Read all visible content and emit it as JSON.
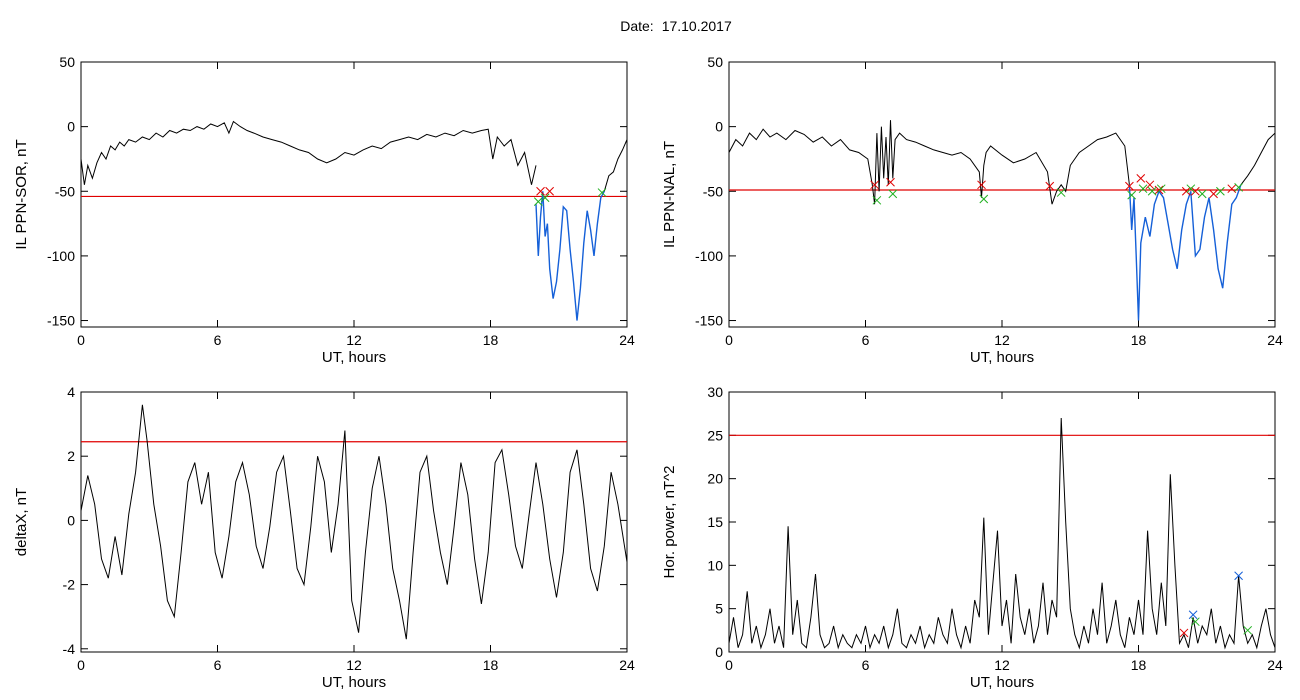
{
  "header": {
    "date_label": "Date:",
    "date_value": "17.10.2017"
  },
  "chart_data": [
    {
      "type": "line",
      "title": "",
      "xlabel": "UT, hours",
      "ylabel": "IL PPN-SOR, nT",
      "xlim": [
        0,
        24
      ],
      "ylim": [
        -155,
        50
      ],
      "xticks": [
        0,
        6,
        12,
        18,
        24
      ],
      "yticks": [
        -150,
        -100,
        -50,
        0,
        50
      ],
      "threshold": {
        "value": -54,
        "color": "#e00000"
      },
      "series": [
        {
          "color": "#000000",
          "x": [
            0,
            0.15,
            0.3,
            0.5,
            0.7,
            0.9,
            1.1,
            1.3,
            1.5,
            1.7,
            1.9,
            2.1,
            2.4,
            2.7,
            3.0,
            3.3,
            3.6,
            3.9,
            4.2,
            4.5,
            4.8,
            5.1,
            5.4,
            5.7,
            6.0,
            6.3,
            6.5,
            6.7,
            7.0,
            7.3,
            7.6,
            8.0,
            8.4,
            8.8,
            9.2,
            9.6,
            10.0,
            10.4,
            10.8,
            11.2,
            11.6,
            12.0,
            12.4,
            12.8,
            13.2,
            13.6,
            14.0,
            14.4,
            14.8,
            15.2,
            15.6,
            16.0,
            16.4,
            16.8,
            17.2,
            17.6,
            17.9,
            18.1,
            18.3,
            18.6,
            18.9,
            19.2,
            19.5,
            19.8,
            20.0
          ],
          "y": [
            -25,
            -45,
            -30,
            -40,
            -28,
            -20,
            -25,
            -15,
            -18,
            -12,
            -15,
            -10,
            -12,
            -8,
            -10,
            -5,
            -8,
            -3,
            -5,
            -2,
            -3,
            0,
            -2,
            2,
            0,
            3,
            -5,
            4,
            0,
            -3,
            -5,
            -8,
            -10,
            -12,
            -15,
            -18,
            -20,
            -25,
            -28,
            -25,
            -20,
            -22,
            -18,
            -15,
            -17,
            -12,
            -10,
            -8,
            -10,
            -6,
            -8,
            -5,
            -7,
            -3,
            -5,
            -3,
            -2,
            -25,
            -8,
            -15,
            -10,
            -30,
            -20,
            -45,
            -30
          ]
        },
        {
          "color": "#1560d8",
          "x": [
            20.0,
            20.1,
            20.2,
            20.3,
            20.4,
            20.5,
            20.6,
            20.75,
            20.9,
            21.05,
            21.2,
            21.35,
            21.5,
            21.65,
            21.8,
            21.95,
            22.1,
            22.25,
            22.4,
            22.55,
            22.7,
            22.85,
            23.0
          ],
          "y": [
            -60,
            -100,
            -70,
            -50,
            -85,
            -75,
            -110,
            -133,
            -120,
            -95,
            -62,
            -65,
            -95,
            -120,
            -150,
            -125,
            -90,
            -65,
            -80,
            -100,
            -75,
            -55,
            -50
          ]
        },
        {
          "color": "#000000",
          "x": [
            23.0,
            23.2,
            23.4,
            23.6,
            23.8,
            24.0
          ],
          "y": [
            -50,
            -38,
            -35,
            -25,
            -18,
            -10
          ]
        }
      ],
      "markers": [
        {
          "color": "#e00000",
          "x": [
            20.2,
            20.6
          ],
          "y": [
            -50,
            -50
          ]
        },
        {
          "color": "#20b020",
          "x": [
            20.1,
            20.4,
            22.9
          ],
          "y": [
            -58,
            -55,
            -51
          ]
        }
      ]
    },
    {
      "type": "line",
      "title": "",
      "xlabel": "UT, hours",
      "ylabel": "IL PPN-NAL, nT",
      "xlim": [
        0,
        24
      ],
      "ylim": [
        -155,
        50
      ],
      "xticks": [
        0,
        6,
        12,
        18,
        24
      ],
      "yticks": [
        -150,
        -100,
        -50,
        0,
        50
      ],
      "threshold": {
        "value": -49,
        "color": "#e00000"
      },
      "series": [
        {
          "color": "#000000",
          "x": [
            0,
            0.3,
            0.6,
            0.9,
            1.2,
            1.5,
            1.8,
            2.1,
            2.5,
            2.9,
            3.3,
            3.7,
            4.1,
            4.5,
            4.9,
            5.3,
            5.7,
            6.1,
            6.3,
            6.4,
            6.5,
            6.6,
            6.7,
            6.8,
            6.9,
            7.0,
            7.1,
            7.2,
            7.3,
            7.5,
            7.8,
            8.2,
            8.6,
            9.0,
            9.4,
            9.8,
            10.2,
            10.6,
            11.0,
            11.1,
            11.2,
            11.3,
            11.5,
            12.0,
            12.5,
            13.0,
            13.5,
            14.0,
            14.2,
            14.4,
            14.6,
            14.8,
            15.0,
            15.4,
            15.8,
            16.2,
            16.6,
            17.0,
            17.4,
            17.6
          ],
          "y": [
            -20,
            -10,
            -15,
            -5,
            -10,
            -2,
            -8,
            -5,
            -10,
            -3,
            -6,
            -12,
            -8,
            -15,
            -10,
            -18,
            -20,
            -25,
            -45,
            -60,
            -5,
            -50,
            0,
            -40,
            -8,
            -45,
            5,
            -40,
            -10,
            -5,
            -10,
            -12,
            -15,
            -18,
            -20,
            -22,
            -20,
            -25,
            -35,
            -55,
            -30,
            -20,
            -15,
            -22,
            -28,
            -25,
            -20,
            -35,
            -60,
            -50,
            -45,
            -50,
            -30,
            -20,
            -15,
            -10,
            -8,
            -5,
            -15,
            -45
          ]
        },
        {
          "color": "#1560d8",
          "x": [
            17.6,
            17.7,
            17.8,
            17.9,
            18.0,
            18.1,
            18.3,
            18.5,
            18.7,
            18.9,
            19.1,
            19.3,
            19.5,
            19.7,
            19.9,
            20.1,
            20.3,
            20.5,
            20.7,
            20.9,
            21.1,
            21.3,
            21.5,
            21.7,
            21.9,
            22.1,
            22.3,
            22.5
          ],
          "y": [
            -45,
            -80,
            -55,
            -100,
            -150,
            -90,
            -70,
            -85,
            -60,
            -50,
            -55,
            -75,
            -95,
            -110,
            -80,
            -60,
            -50,
            -100,
            -95,
            -70,
            -55,
            -80,
            -110,
            -125,
            -90,
            -60,
            -55,
            -45
          ]
        },
        {
          "color": "#000000",
          "x": [
            22.5,
            22.8,
            23.1,
            23.4,
            23.7,
            24.0
          ],
          "y": [
            -45,
            -38,
            -30,
            -20,
            -10,
            -5
          ]
        }
      ],
      "markers": [
        {
          "color": "#e00000",
          "x": [
            6.4,
            7.1,
            11.1,
            14.1,
            17.6,
            18.1,
            18.5,
            18.9,
            20.1,
            20.5,
            21.3,
            22.1
          ],
          "y": [
            -45,
            -43,
            -45,
            -46,
            -46,
            -40,
            -45,
            -49,
            -50,
            -50,
            -52,
            -48
          ]
        },
        {
          "color": "#20b020",
          "x": [
            6.5,
            7.2,
            11.2,
            14.6,
            17.7,
            18.2,
            18.6,
            19.0,
            20.3,
            20.8,
            21.6,
            22.4
          ],
          "y": [
            -57,
            -52,
            -56,
            -51,
            -53,
            -48,
            -50,
            -48,
            -48,
            -52,
            -50,
            -47
          ]
        }
      ]
    },
    {
      "type": "line",
      "title": "",
      "xlabel": "UT, hours",
      "ylabel": "deltaX, nT",
      "xlim": [
        0,
        24
      ],
      "ylim": [
        -4.1,
        4
      ],
      "xticks": [
        0,
        6,
        12,
        18,
        24
      ],
      "yticks": [
        -4,
        -2,
        0,
        2,
        4
      ],
      "threshold": {
        "value": 2.45,
        "color": "#e00000"
      },
      "series": [
        {
          "color": "#000000",
          "x": [
            0,
            0.3,
            0.6,
            0.9,
            1.2,
            1.5,
            1.8,
            2.1,
            2.4,
            2.7,
            2.9,
            3.2,
            3.5,
            3.8,
            4.1,
            4.4,
            4.7,
            5.0,
            5.3,
            5.6,
            5.9,
            6.2,
            6.5,
            6.8,
            7.1,
            7.4,
            7.7,
            8.0,
            8.3,
            8.6,
            8.9,
            9.2,
            9.5,
            9.8,
            10.1,
            10.4,
            10.7,
            11.0,
            11.3,
            11.6,
            11.9,
            12.2,
            12.5,
            12.8,
            13.1,
            13.4,
            13.7,
            14.0,
            14.3,
            14.6,
            14.9,
            15.2,
            15.5,
            15.8,
            16.1,
            16.4,
            16.7,
            17.0,
            17.3,
            17.6,
            17.9,
            18.2,
            18.5,
            18.8,
            19.1,
            19.4,
            19.7,
            20.0,
            20.3,
            20.6,
            20.9,
            21.2,
            21.5,
            21.8,
            22.1,
            22.4,
            22.7,
            23.0,
            23.3,
            23.6,
            24.0
          ],
          "y": [
            0.3,
            1.4,
            0.5,
            -1.2,
            -1.8,
            -0.5,
            -1.7,
            0.2,
            1.5,
            3.6,
            2.5,
            0.5,
            -0.8,
            -2.5,
            -3.0,
            -1.0,
            1.2,
            1.8,
            0.5,
            1.5,
            -1.0,
            -1.8,
            -0.5,
            1.2,
            1.8,
            0.8,
            -0.8,
            -1.5,
            -0.2,
            1.5,
            2.0,
            0.3,
            -1.5,
            -2.0,
            -0.2,
            2.0,
            1.2,
            -1.0,
            0.5,
            2.8,
            -2.5,
            -3.5,
            -1.0,
            1.0,
            2.0,
            0.5,
            -1.5,
            -2.5,
            -3.7,
            -1.0,
            1.5,
            2.0,
            0.3,
            -1.0,
            -2.0,
            -0.2,
            1.8,
            0.8,
            -1.2,
            -2.6,
            -1.0,
            1.8,
            2.2,
            0.8,
            -0.8,
            -1.5,
            0.2,
            1.8,
            0.5,
            -1.2,
            -2.4,
            -1.0,
            1.5,
            2.2,
            0.5,
            -1.5,
            -2.2,
            -0.8,
            1.5,
            0.5,
            -1.3
          ]
        }
      ],
      "markers": []
    },
    {
      "type": "line",
      "title": "",
      "xlabel": "UT, hours",
      "ylabel": "Hor. power, nT^2",
      "xlim": [
        0,
        24
      ],
      "ylim": [
        0,
        30
      ],
      "xticks": [
        0,
        6,
        12,
        18,
        24
      ],
      "yticks": [
        0,
        5,
        10,
        15,
        20,
        25,
        30
      ],
      "threshold": {
        "value": 25,
        "color": "#e00000"
      },
      "series": [
        {
          "color": "#000000",
          "x": [
            0,
            0.2,
            0.4,
            0.6,
            0.8,
            1.0,
            1.2,
            1.4,
            1.6,
            1.8,
            2.0,
            2.2,
            2.4,
            2.6,
            2.8,
            3.0,
            3.2,
            3.4,
            3.6,
            3.8,
            4.0,
            4.2,
            4.4,
            4.6,
            4.8,
            5.0,
            5.2,
            5.4,
            5.6,
            5.8,
            6.0,
            6.2,
            6.4,
            6.6,
            6.8,
            7.0,
            7.2,
            7.4,
            7.6,
            7.8,
            8.0,
            8.2,
            8.4,
            8.6,
            8.8,
            9.0,
            9.2,
            9.4,
            9.6,
            9.8,
            10.0,
            10.2,
            10.4,
            10.6,
            10.8,
            11.0,
            11.2,
            11.4,
            11.6,
            11.8,
            12.0,
            12.2,
            12.4,
            12.6,
            12.8,
            13.0,
            13.2,
            13.4,
            13.6,
            13.8,
            14.0,
            14.2,
            14.4,
            14.6,
            14.8,
            15.0,
            15.2,
            15.4,
            15.6,
            15.8,
            16.0,
            16.2,
            16.4,
            16.6,
            16.8,
            17.0,
            17.2,
            17.4,
            17.6,
            17.8,
            18.0,
            18.2,
            18.4,
            18.6,
            18.8,
            19.0,
            19.2,
            19.4,
            19.6,
            19.8,
            20.0,
            20.2,
            20.4,
            20.6,
            20.8,
            21.0,
            21.2,
            21.4,
            21.6,
            21.8,
            22.0,
            22.2,
            22.4,
            22.6,
            22.8,
            23.0,
            23.2,
            23.4,
            23.6,
            23.8,
            24.0
          ],
          "y": [
            1,
            4,
            0.5,
            2,
            7,
            1,
            3,
            0.5,
            2,
            5,
            1,
            3,
            0.5,
            14.5,
            2,
            6,
            1,
            0.5,
            4,
            9,
            2,
            0.5,
            1,
            3,
            0.5,
            2,
            1,
            0.5,
            2,
            1,
            3,
            0.5,
            2,
            1,
            3,
            0.5,
            2,
            5,
            1,
            0.5,
            2,
            1,
            3,
            0.5,
            2,
            1,
            4,
            2,
            1,
            5,
            2,
            0.5,
            3,
            1,
            6,
            4,
            15.5,
            2,
            8,
            14,
            3,
            6,
            1,
            9,
            4,
            2,
            5,
            1,
            3,
            8,
            2,
            6,
            4,
            27,
            15,
            5,
            2,
            0.5,
            3,
            1,
            5,
            2,
            8,
            1,
            3,
            6,
            2,
            0.5,
            4,
            2,
            6,
            2,
            14,
            5,
            2,
            8,
            3,
            20.5,
            10,
            1,
            2,
            0.5,
            4,
            1,
            3,
            2,
            5,
            1,
            3,
            0.5,
            2,
            1,
            8.8,
            3,
            1,
            2,
            0.5,
            3,
            5,
            2,
            0.5
          ]
        }
      ],
      "markers": [
        {
          "color": "#e00000",
          "x": [
            20.0
          ],
          "y": [
            2.2
          ]
        },
        {
          "color": "#20b020",
          "x": [
            20.5,
            22.8
          ],
          "y": [
            3.5,
            2.5
          ]
        },
        {
          "color": "#1560d8",
          "x": [
            20.4,
            22.4
          ],
          "y": [
            4.3,
            8.8
          ]
        }
      ]
    }
  ]
}
